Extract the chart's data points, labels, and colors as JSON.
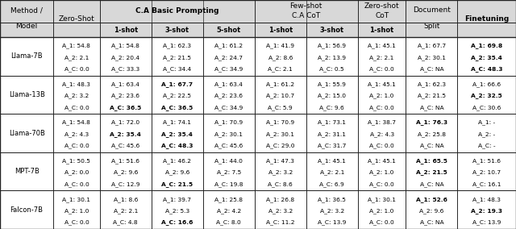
{
  "rows": [
    {
      "model": "Llama-7B",
      "cells": [
        [
          "A_1: 54.8",
          "A_2: 2.1",
          "A_C: 0.0"
        ],
        [
          "A_1: 54.8",
          "A_2: 20.4",
          "A_C: 33.3"
        ],
        [
          "A_1: 62.3",
          "A_2: 21.5",
          "A_C: 34.4"
        ],
        [
          "A_1: 61.2",
          "A_2: 24.7",
          "A_C: 34.9"
        ],
        [
          "A_1: 41.9",
          "A_2: 8.6",
          "A_C: 2.1"
        ],
        [
          "A_1: 56.9",
          "A_2: 13.9",
          "A_C: 0.5"
        ],
        [
          "A_1: 45.1",
          "A_2: 2.1",
          "A_C: 0.0"
        ],
        [
          "A_1: 67.7",
          "A_2: 30.1",
          "A_C: NA"
        ],
        [
          "A_1: 69.8",
          "A_2: 35.4",
          "A_C: 48.3"
        ]
      ],
      "bold": [
        [],
        [],
        [],
        [],
        [],
        [],
        [],
        [],
        [
          0,
          1,
          2
        ]
      ]
    },
    {
      "model": "Llama-13B",
      "cells": [
        [
          "A_1: 48.3",
          "A_2: 3.2",
          "A_C: 0.0"
        ],
        [
          "A_1: 63.4",
          "A_2: 23.6",
          "A_C: 36.5"
        ],
        [
          "A_1: 67.7",
          "A_2: 22.5",
          "A_C: 36.5"
        ],
        [
          "A_1: 63.4",
          "A_2: 23.6",
          "A_C: 34.9"
        ],
        [
          "A_1: 61.2",
          "A_2: 10.7",
          "A_C: 5.9"
        ],
        [
          "A_1: 55.9",
          "A_2: 15.0",
          "A_C: 9.6"
        ],
        [
          "A_1: 45.1",
          "A_2: 1.0",
          "A_C: 0.0"
        ],
        [
          "A_1: 62.3",
          "A_2: 21.5",
          "A_C: NA"
        ],
        [
          "A_1: 66.6",
          "A_2: 32.5",
          "A_C: 30.6"
        ]
      ],
      "bold": [
        [],
        [
          2
        ],
        [
          0,
          2
        ],
        [],
        [],
        [],
        [],
        [],
        [
          1
        ]
      ]
    },
    {
      "model": "Llama-70B",
      "cells": [
        [
          "A_1: 54.8",
          "A_2: 4.3",
          "A_C: 0.0"
        ],
        [
          "A_1: 72.0",
          "A_2: 35.4",
          "A_C: 45.6"
        ],
        [
          "A_1: 74.1",
          "A_2: 35.4",
          "A_C: 48.3"
        ],
        [
          "A_1: 70.9",
          "A_2: 30.1",
          "A_C: 45.6"
        ],
        [
          "A_1: 70.9",
          "A_2: 30.1",
          "A_C: 29.0"
        ],
        [
          "A_1: 73.1",
          "A_2: 31.1",
          "A_C: 31.7"
        ],
        [
          "A_1: 38.7",
          "A_2: 4.3",
          "A_C: 0.0"
        ],
        [
          "A_1: 76.3",
          "A_2: 25.8",
          "A_C: NA"
        ],
        [
          "A_1: -",
          "A_2: -",
          "A_C: -"
        ]
      ],
      "bold": [
        [],
        [
          1
        ],
        [
          1,
          2
        ],
        [],
        [],
        [],
        [],
        [
          0
        ],
        []
      ]
    },
    {
      "model": "MPT-7B",
      "cells": [
        [
          "A_1: 50.5",
          "A_2: 0.0",
          "A_C: 0.0"
        ],
        [
          "A_1: 51.6",
          "A_2: 9.6",
          "A_C: 12.9"
        ],
        [
          "A_1: 46.2",
          "A_2: 9.6",
          "A_C: 21.5"
        ],
        [
          "A_1: 44.0",
          "A_2: 7.5",
          "A_C: 19.8"
        ],
        [
          "A_1: 47.3",
          "A_2: 3.2",
          "A_C: 8.6"
        ],
        [
          "A_1: 45.1",
          "A_2: 2.1",
          "A_C: 6.9"
        ],
        [
          "A_1: 45.1",
          "A_2: 1.0",
          "A_C: 0.0"
        ],
        [
          "A_1: 65.5",
          "A_2: 21.5",
          "A_C: NA"
        ],
        [
          "A_1: 51.6",
          "A_2: 10.7",
          "A_C: 16.1"
        ]
      ],
      "bold": [
        [],
        [],
        [
          2
        ],
        [],
        [],
        [],
        [],
        [
          0,
          1
        ],
        []
      ]
    },
    {
      "model": "Falcon-7B",
      "cells": [
        [
          "A_1: 30.1",
          "A_2: 1.0",
          "A_C: 0.0"
        ],
        [
          "A_1: 8.6",
          "A_2: 2.1",
          "A_C: 4.8"
        ],
        [
          "A_1: 39.7",
          "A_2: 5.3",
          "A_C: 16.6"
        ],
        [
          "A_1: 25.8",
          "A_2: 4.2",
          "A_C: 8.0"
        ],
        [
          "A_1: 26.8",
          "A_2: 3.2",
          "A_C: 11.2"
        ],
        [
          "A_1: 36.5",
          "A_2: 3.2",
          "A_C: 13.9"
        ],
        [
          "A_1: 30.1",
          "A_2: 1.0",
          "A_C: 0.0"
        ],
        [
          "A_1: 52.6",
          "A_2: 9.6",
          "A_C: NA"
        ],
        [
          "A_1: 48.3",
          "A_2: 19.3",
          "A_C: 13.9"
        ]
      ],
      "bold": [
        [],
        [],
        [
          2
        ],
        [],
        [],
        [],
        [],
        [
          0
        ],
        [
          1
        ]
      ]
    }
  ]
}
